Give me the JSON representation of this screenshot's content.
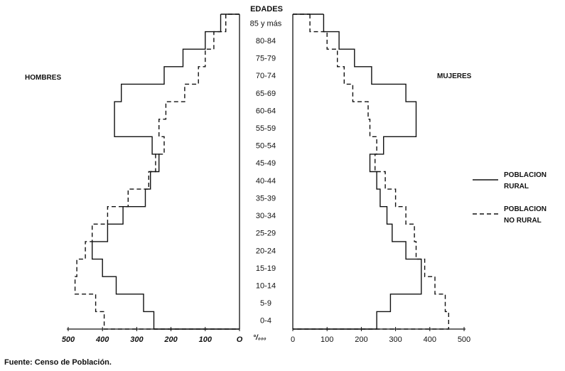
{
  "source_note": "Fuente: Censo de Población.",
  "chart_data": {
    "type": "population-pyramid",
    "age_axis_title": "EDADES",
    "age_groups": [
      "85 y más",
      "80-84",
      "75-79",
      "70-74",
      "65-69",
      "60-64",
      "55-59",
      "50-54",
      "45-49",
      "40-44",
      "35-39",
      "30-34",
      "25-29",
      "20-24",
      "15-19",
      "10-14",
      "5-9",
      "0-4"
    ],
    "left_panel": {
      "label": "HOMBRES",
      "xlim": [
        500,
        0
      ],
      "ticks": [
        500,
        400,
        300,
        200,
        100,
        0
      ],
      "tick_labels": [
        "500",
        "400",
        "300",
        "200",
        "100",
        "O"
      ]
    },
    "right_panel": {
      "label": "MUJERES",
      "xlim": [
        0,
        500
      ],
      "ticks": [
        0,
        100,
        200,
        300,
        400,
        500
      ],
      "tick_labels": [
        "0",
        "100",
        "200",
        "300",
        "400",
        "500"
      ]
    },
    "unit_label": "°/₀₀₀",
    "series": [
      {
        "name_line1": "POBLACION",
        "name_line2": "RURAL",
        "line_style": "solid",
        "hombres": [
          55,
          100,
          165,
          220,
          345,
          365,
          365,
          255,
          235,
          260,
          275,
          340,
          385,
          430,
          400,
          360,
          280,
          250
        ],
        "mujeres": [
          90,
          135,
          180,
          230,
          330,
          360,
          360,
          265,
          225,
          245,
          255,
          275,
          290,
          330,
          375,
          375,
          285,
          245
        ]
      },
      {
        "name_line1": "POBLACION",
        "name_line2": "NO RURAL",
        "line_style": "dashed",
        "hombres": [
          40,
          75,
          100,
          120,
          160,
          215,
          235,
          220,
          245,
          265,
          325,
          385,
          430,
          450,
          475,
          480,
          420,
          395
        ],
        "mujeres": [
          50,
          100,
          130,
          150,
          175,
          220,
          225,
          245,
          240,
          270,
          300,
          330,
          355,
          360,
          385,
          415,
          445,
          455
        ]
      }
    ]
  }
}
